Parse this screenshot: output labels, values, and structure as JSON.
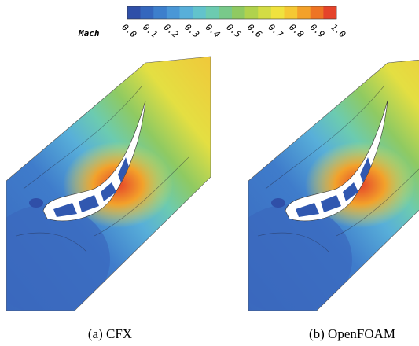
{
  "colorbar": {
    "label": "Mach",
    "ticks": [
      "0.0",
      "0.1",
      "0.2",
      "0.3",
      "0.4",
      "0.5",
      "0.6",
      "0.7",
      "0.8",
      "0.9",
      "1.0"
    ],
    "colors": [
      "#2f4fa8",
      "#3567bd",
      "#3d7fcc",
      "#4a97d6",
      "#58afd9",
      "#62c3cc",
      "#6ccbb0",
      "#78c98a",
      "#8fca62",
      "#b0d24d",
      "#d3dc45",
      "#f0e23e",
      "#f5c834",
      "#f3a12a",
      "#ee7424",
      "#e5432a"
    ]
  },
  "panels": [
    {
      "caption": "(a)  CFX"
    },
    {
      "caption": "(b)  OpenFOAM"
    }
  ]
}
